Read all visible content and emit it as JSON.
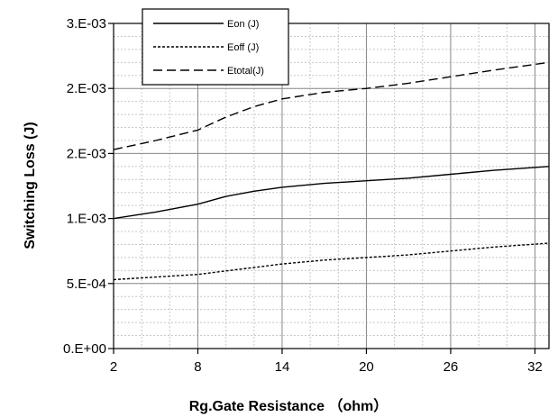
{
  "chart_data": {
    "type": "line",
    "title": "",
    "xlabel": "Rg.Gate Resistance （ohm）",
    "ylabel": "Switching Loss (J)",
    "xlim": [
      2,
      33
    ],
    "ylim": [
      0,
      0.0025
    ],
    "x_tick_values": [
      2,
      8,
      14,
      20,
      26,
      32
    ],
    "x_tick_labels": [
      "2",
      "8",
      "14",
      "20",
      "26",
      "32"
    ],
    "y_tick_values": [
      0,
      0.0005,
      0.001,
      0.0015,
      0.002,
      0.0025
    ],
    "y_tick_labels": [
      "0.E+00",
      "5.E-04",
      "1.E-03",
      "2.E-03",
      "2.E-03",
      "3.E-03"
    ],
    "x_minor_step": 2,
    "y_minor_step": 0.0001,
    "grid": true,
    "legend_position": "top-left",
    "series": [
      {
        "name": "Eon (J)",
        "style": "solid",
        "color": "#000000",
        "x": [
          2,
          5,
          8,
          10,
          12,
          14,
          17,
          20,
          23,
          26,
          29,
          33
        ],
        "y": [
          0.001,
          0.00105,
          0.00111,
          0.00117,
          0.00121,
          0.00124,
          0.00127,
          0.00129,
          0.00131,
          0.00134,
          0.00137,
          0.0014
        ]
      },
      {
        "name": "Eoff (J)",
        "style": "dotted",
        "color": "#000000",
        "x": [
          2,
          5,
          8,
          11,
          14,
          17,
          20,
          23,
          26,
          29,
          33
        ],
        "y": [
          0.00053,
          0.00055,
          0.00057,
          0.00061,
          0.00065,
          0.00068,
          0.0007,
          0.00072,
          0.00075,
          0.00078,
          0.00081
        ]
      },
      {
        "name": "Etotal(J)",
        "style": "dashed",
        "color": "#000000",
        "x": [
          2,
          5,
          8,
          10,
          12,
          14,
          17,
          20,
          23,
          26,
          29,
          33
        ],
        "y": [
          0.00153,
          0.0016,
          0.00168,
          0.00178,
          0.00186,
          0.00192,
          0.00197,
          0.002,
          0.00204,
          0.00209,
          0.00214,
          0.0022
        ]
      }
    ]
  }
}
